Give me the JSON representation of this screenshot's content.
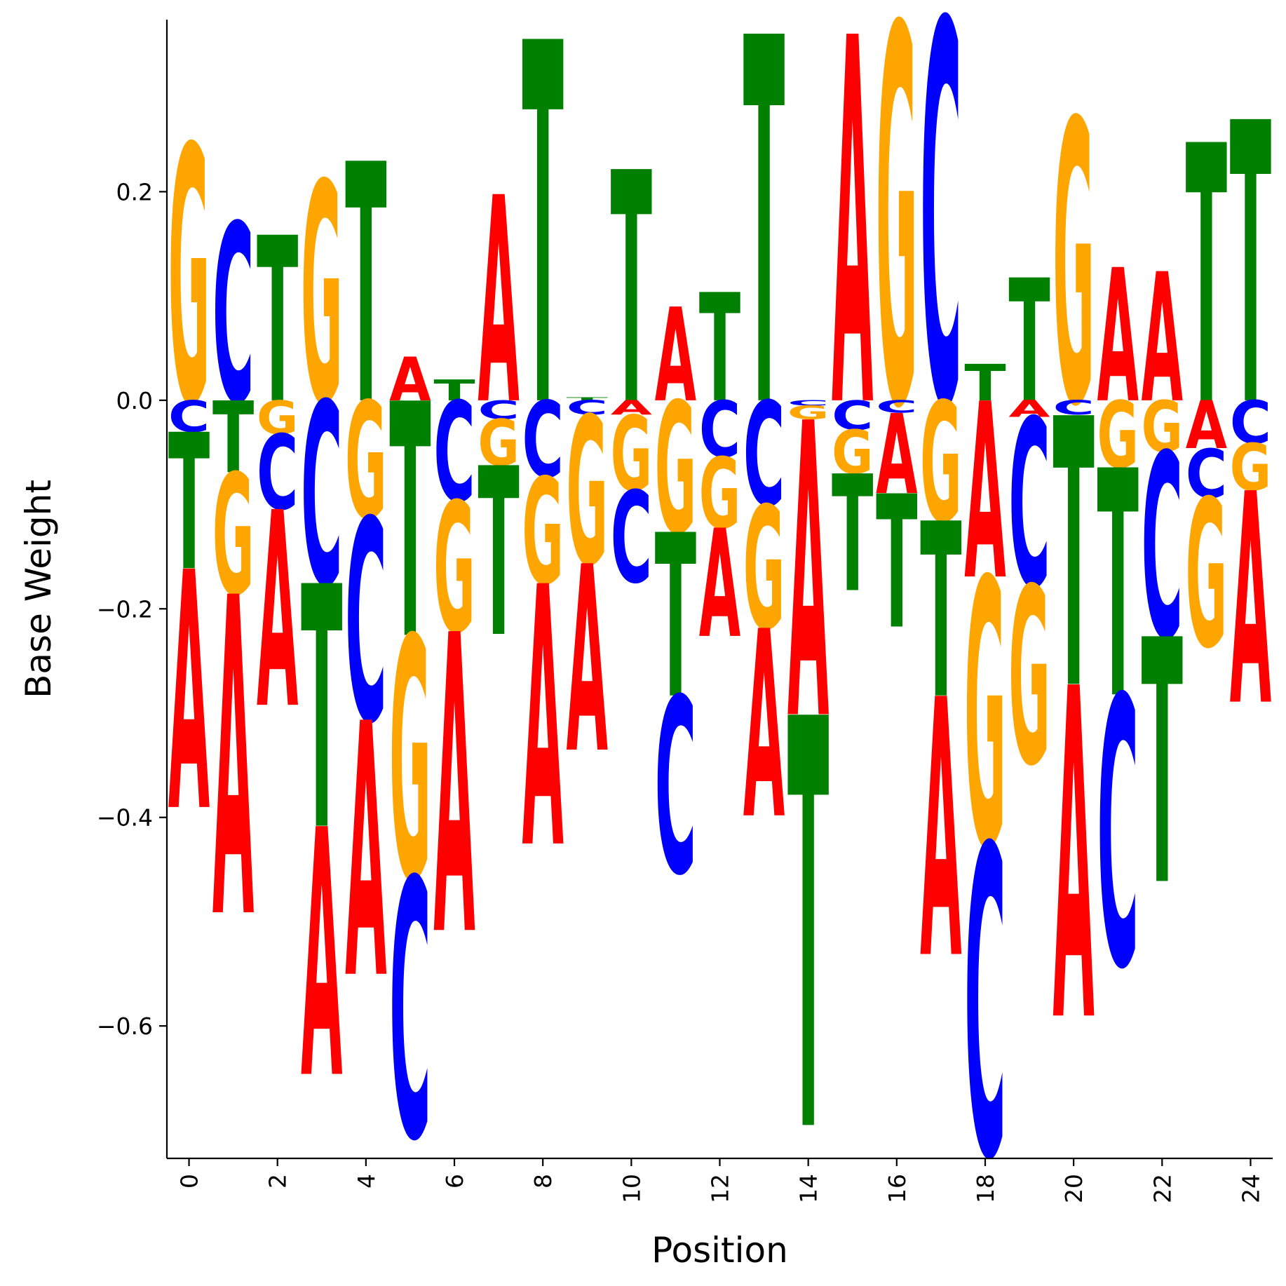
{
  "chart_data": {
    "type": "sequence-logo",
    "xlabel": "Position",
    "ylabel": "Base Weight",
    "xlim": [
      -0.5,
      24.5
    ],
    "ylim": [
      -0.727,
      0.365
    ],
    "xticks": [
      0,
      2,
      4,
      6,
      8,
      10,
      12,
      14,
      16,
      18,
      20,
      22,
      24
    ],
    "yticks": [
      -0.6,
      -0.4,
      -0.2,
      0.0,
      0.2
    ],
    "ytick_labels": [
      "−0.6",
      "−0.4",
      "−0.2",
      "0.0",
      "0.2"
    ],
    "xtick_labels": [
      "0",
      "2",
      "4",
      "6",
      "8",
      "10",
      "12",
      "14",
      "16",
      "18",
      "20",
      "22",
      "24"
    ],
    "grid": false,
    "legend": "none",
    "colors": {
      "A": "#ff0000",
      "C": "#0000ff",
      "G": "#ffa500",
      "T": "#008000"
    },
    "positions": [
      {
        "pos": 0,
        "A": -0.229,
        "C": -0.03,
        "G": 0.246,
        "T": -0.131
      },
      {
        "pos": 1,
        "A": -0.306,
        "C": 0.171,
        "G": -0.116,
        "T": -0.069
      },
      {
        "pos": 2,
        "A": -0.188,
        "C": -0.072,
        "G": -0.032,
        "T": 0.159
      },
      {
        "pos": 3,
        "A": -0.238,
        "C": -0.175,
        "G": 0.211,
        "T": -0.233
      },
      {
        "pos": 4,
        "A": -0.244,
        "C": -0.194,
        "G": -0.112,
        "T": 0.23
      },
      {
        "pos": 5,
        "A": 0.042,
        "C": -0.248,
        "G": -0.232,
        "T": -0.225
      },
      {
        "pos": 6,
        "A": -0.287,
        "C": -0.096,
        "G": -0.125,
        "T": 0.02
      },
      {
        "pos": 7,
        "A": 0.198,
        "C": -0.018,
        "G": -0.044,
        "T": -0.162
      },
      {
        "pos": 8,
        "A": -0.25,
        "C": -0.073,
        "G": -0.102,
        "T": 0.347
      },
      {
        "pos": 9,
        "A": -0.179,
        "C": -0.014,
        "G": -0.142,
        "T": 0.003
      },
      {
        "pos": 10,
        "A": -0.014,
        "C": -0.088,
        "G": -0.072,
        "T": 0.222
      },
      {
        "pos": 11,
        "A": 0.09,
        "C": -0.169,
        "G": -0.126,
        "T": -0.157
      },
      {
        "pos": 12,
        "A": -0.104,
        "C": -0.054,
        "G": -0.068,
        "T": 0.104
      },
      {
        "pos": 13,
        "A": -0.18,
        "C": -0.1,
        "G": -0.118,
        "T": 0.352
      },
      {
        "pos": 14,
        "A": -0.283,
        "C": -0.005,
        "G": -0.013,
        "T": -0.394
      },
      {
        "pos": 15,
        "A": 0.352,
        "C": -0.028,
        "G": -0.042,
        "T": -0.112
      },
      {
        "pos": 16,
        "A": -0.077,
        "C": -0.012,
        "G": 0.362,
        "T": -0.128
      },
      {
        "pos": 17,
        "A": -0.248,
        "C": 0.366,
        "G": -0.115,
        "T": -0.168
      },
      {
        "pos": 18,
        "A": -0.169,
        "C": -0.297,
        "G": -0.256,
        "T": 0.035
      },
      {
        "pos": 19,
        "A": -0.016,
        "C": -0.161,
        "G": -0.17,
        "T": 0.118
      },
      {
        "pos": 20,
        "A": -0.318,
        "C": -0.014,
        "G": 0.271,
        "T": -0.258
      },
      {
        "pos": 21,
        "A": 0.128,
        "C": -0.258,
        "G": -0.064,
        "T": -0.218
      },
      {
        "pos": 22,
        "A": 0.124,
        "C": -0.177,
        "G": -0.049,
        "T": -0.235
      },
      {
        "pos": 23,
        "A": -0.046,
        "C": -0.047,
        "G": -0.142,
        "T": 0.248
      },
      {
        "pos": 24,
        "A": -0.203,
        "C": -0.041,
        "G": -0.045,
        "T": 0.27
      }
    ]
  }
}
